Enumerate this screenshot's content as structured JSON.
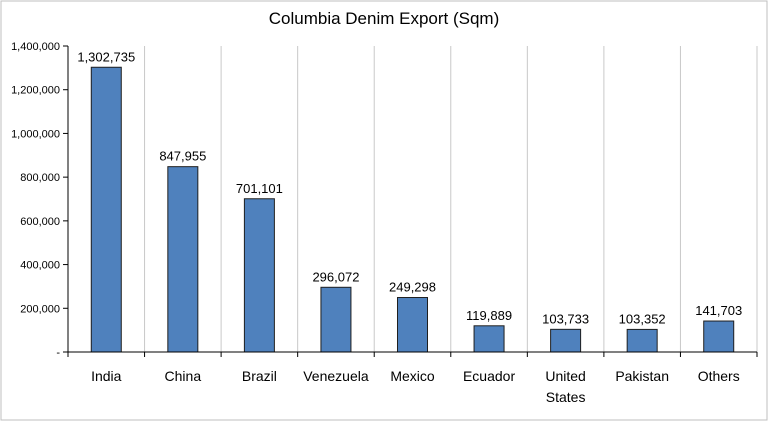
{
  "chart_data": {
    "type": "bar",
    "title": "Columbia Denim Export (Sqm)",
    "categories": [
      "India",
      "China",
      "Brazil",
      "Venezuela",
      "Mexico",
      "Ecuador",
      "United States",
      "Pakistan",
      "Others"
    ],
    "category_lines": [
      [
        "India"
      ],
      [
        "China"
      ],
      [
        "Brazil"
      ],
      [
        "Venezuela"
      ],
      [
        "Mexico"
      ],
      [
        "Ecuador"
      ],
      [
        "United",
        "States"
      ],
      [
        "Pakistan"
      ],
      [
        "Others"
      ]
    ],
    "values": [
      1302735,
      847955,
      701101,
      296072,
      249298,
      119889,
      103733,
      103352,
      141703
    ],
    "value_labels": [
      "1,302,735",
      "847,955",
      "701,101",
      "296,072",
      "249,298",
      "119,889",
      "103,733",
      "103,352",
      "141,703"
    ],
    "yticks": [
      0,
      200000,
      400000,
      600000,
      800000,
      1000000,
      1200000,
      1400000
    ],
    "ytick_labels": [
      "-",
      "200,000",
      "400,000",
      "600,000",
      "800,000",
      "1,000,000",
      "1,200,000",
      "1,400,000"
    ],
    "ylim": [
      0,
      1400000
    ],
    "xlabel": "",
    "ylabel": "",
    "grid": "vertical category lines",
    "legend": "none",
    "colors": {
      "bar_fill": "#4f81bd",
      "bar_stroke": "#1f1f1f",
      "grid": "#c8c8c8",
      "axis": "#000000",
      "frame": "#bfbfbf"
    }
  }
}
